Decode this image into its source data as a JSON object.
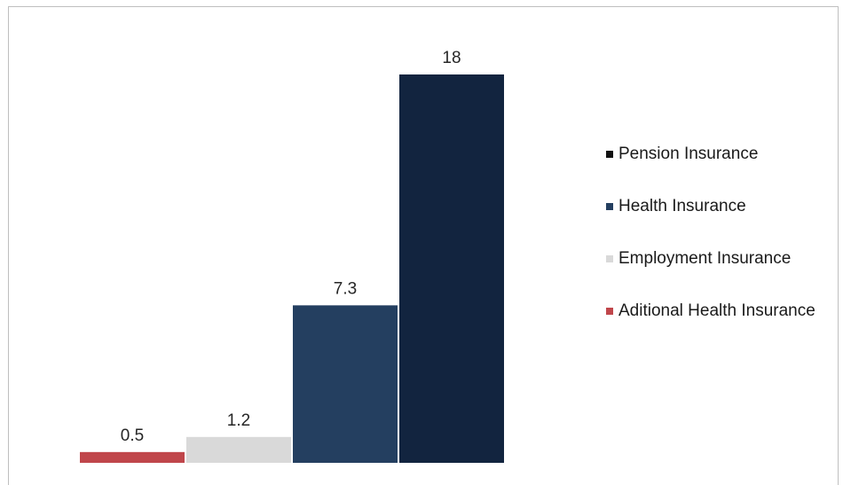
{
  "chart_data": {
    "type": "bar",
    "categories": [
      "Aditional Health Insurance",
      "Employment Insurance",
      "Health Insurance",
      "Pension Insurance"
    ],
    "values": [
      0.5,
      1.2,
      7.3,
      18
    ],
    "value_labels": [
      "0.5",
      "1.2",
      "7.3",
      "18"
    ],
    "colors": [
      "#c0464b",
      "#d9d9d9",
      "#243f60",
      "#12243f"
    ],
    "ylim": [
      0,
      18
    ],
    "grid": false,
    "legend": {
      "position": "right",
      "items": [
        {
          "label": "Pension Insurance",
          "color": "#111111"
        },
        {
          "label": "Health Insurance",
          "color": "#243f60"
        },
        {
          "label": "Employment Insurance",
          "color": "#d9d9d9"
        },
        {
          "label": "Aditional Health Insurance",
          "color": "#c0464b"
        }
      ]
    }
  }
}
